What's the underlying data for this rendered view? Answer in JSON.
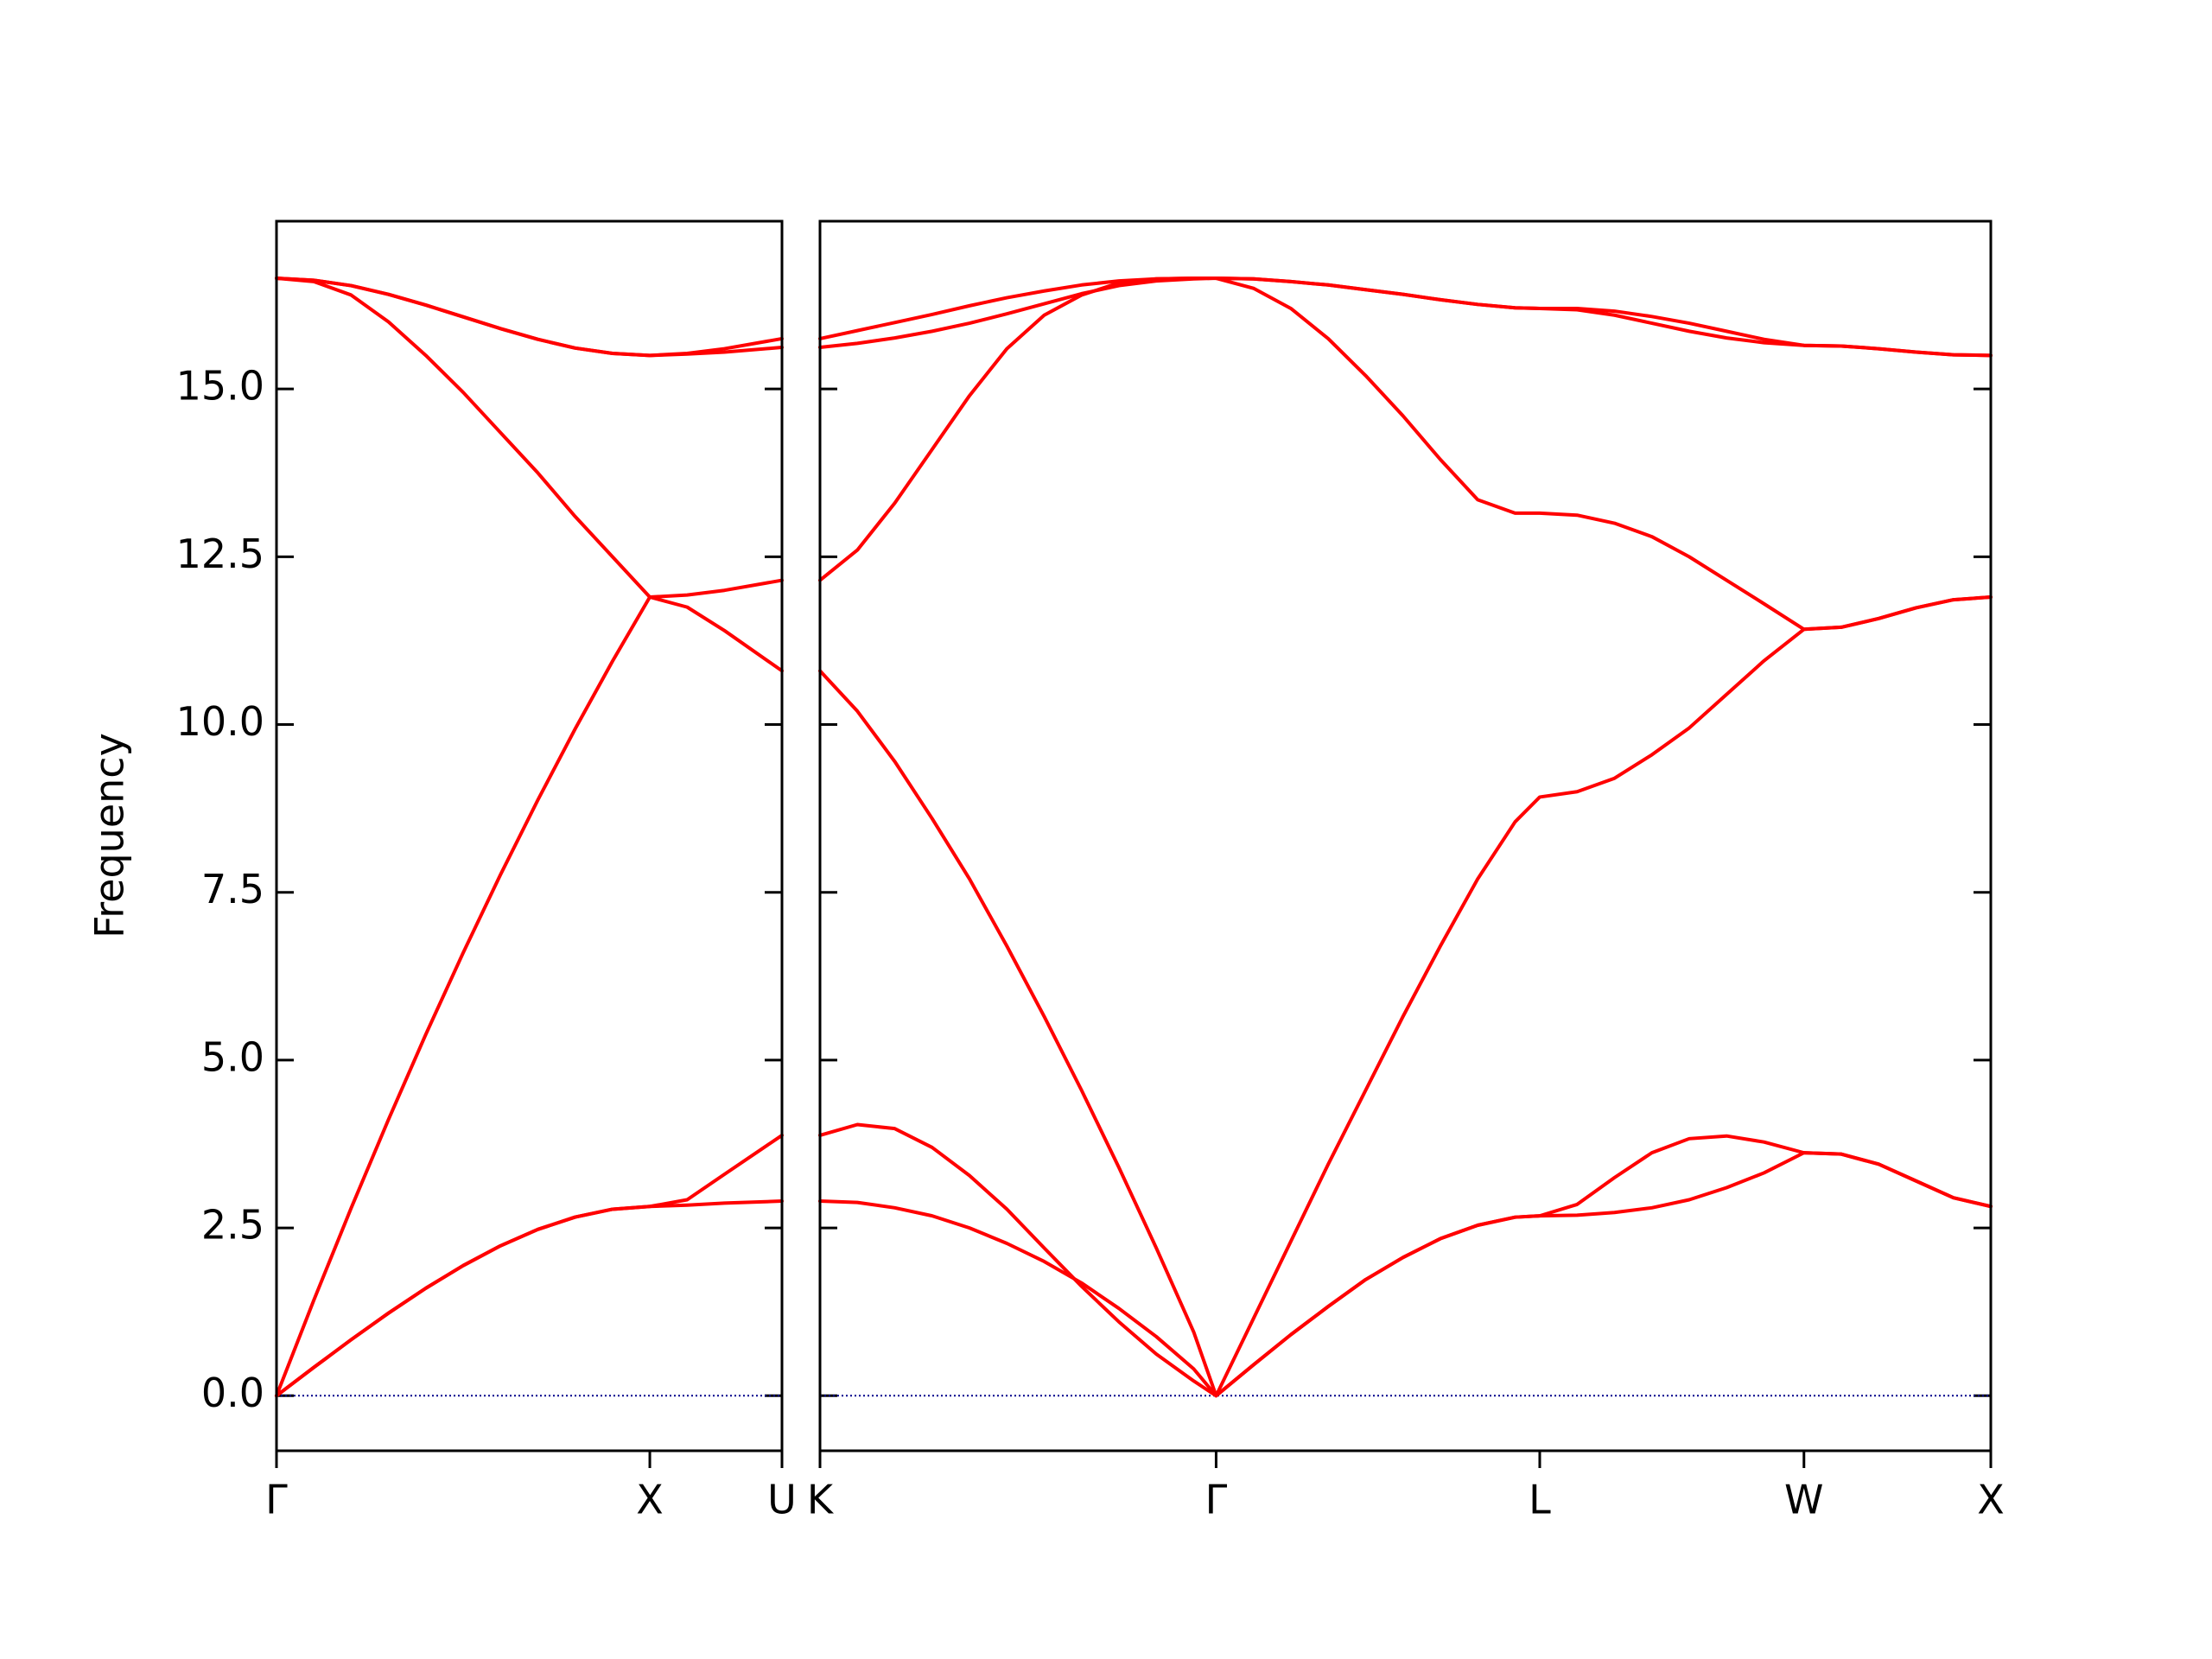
{
  "chart_data": [
    {
      "type": "line",
      "ylabel": "Frequency",
      "xlim": [
        0,
        1.354
      ],
      "ylim": [
        -0.82,
        17.5
      ],
      "xticks": [
        {
          "value": 0,
          "label": "Γ"
        },
        {
          "value": 1,
          "label": "X"
        },
        {
          "value": 1.354,
          "label": "U"
        }
      ],
      "yticks": [
        {
          "value": 0,
          "label": "0.0"
        },
        2.5,
        {
          "value": 5,
          "label": "5.0"
        },
        7.5,
        {
          "value": 10,
          "label": "10.0"
        },
        12.5,
        {
          "value": 15,
          "label": "15.0"
        }
      ],
      "hline": 0,
      "hline_color": "#00008b",
      "x": [
        0,
        0.1,
        0.2,
        0.3,
        0.4,
        0.5,
        0.6,
        0.7,
        0.8,
        0.9,
        1.0,
        1.1,
        1.2,
        1.354
      ],
      "series": [
        {
          "color": "#ff0000",
          "values": [
            0,
            0.422,
            0.835,
            1.231,
            1.602,
            1.939,
            2.234,
            2.478,
            2.662,
            2.779,
            2.82,
            2.84,
            2.87,
            2.9
          ]
        },
        {
          "color": "#ff0000",
          "values": [
            0,
            0.422,
            0.835,
            1.231,
            1.602,
            1.939,
            2.234,
            2.478,
            2.662,
            2.779,
            2.82,
            2.92,
            3.3,
            3.88
          ]
        },
        {
          "color": "#ff0000",
          "values": [
            0,
            1.424,
            2.796,
            4.116,
            5.384,
            6.6,
            7.764,
            8.876,
            9.936,
            10.944,
            11.9,
            11.75,
            11.4,
            10.8
          ]
        },
        {
          "color": "#ff0000",
          "values": [
            16.65,
            16.6,
            16.4,
            16.0,
            15.5,
            14.95,
            14.35,
            13.75,
            13.1,
            12.5,
            11.9,
            11.93,
            12.0,
            12.15
          ]
        },
        {
          "color": "#ff0000",
          "values": [
            16.65,
            16.62,
            16.54,
            16.41,
            16.25,
            16.075,
            15.9,
            15.74,
            15.61,
            15.53,
            15.5,
            15.52,
            15.55,
            15.62
          ]
        },
        {
          "color": "#ff0000",
          "values": [
            16.65,
            16.62,
            16.54,
            16.41,
            16.25,
            16.075,
            15.9,
            15.74,
            15.61,
            15.53,
            15.5,
            15.53,
            15.6,
            15.75
          ]
        }
      ]
    },
    {
      "type": "line",
      "sharey": true,
      "xlim": [
        1.354,
        4.487
      ],
      "ylim": [
        -0.82,
        17.5
      ],
      "xticks": [
        {
          "value": 1.354,
          "label": "K"
        },
        {
          "value": 2.414,
          "label": "Γ"
        },
        {
          "value": 3.28,
          "label": "L"
        },
        {
          "value": 3.987,
          "label": "W"
        },
        {
          "value": 4.487,
          "label": "X"
        }
      ],
      "hline": 0,
      "hline_color": "#00008b",
      "x": [
        1.354,
        1.454,
        1.554,
        1.654,
        1.754,
        1.854,
        1.954,
        2.054,
        2.154,
        2.254,
        2.354,
        2.414,
        2.514,
        2.614,
        2.714,
        2.814,
        2.914,
        3.014,
        3.114,
        3.214,
        3.28,
        3.38,
        3.48,
        3.58,
        3.68,
        3.78,
        3.88,
        3.987,
        4.087,
        4.187,
        4.287,
        4.387,
        4.487
      ],
      "series": [
        {
          "color": "#ff0000",
          "values": [
            2.9,
            2.88,
            2.8,
            2.68,
            2.5,
            2.27,
            2.0,
            1.68,
            1.3,
            0.88,
            0.4,
            0,
            0.46,
            0.91,
            1.33,
            1.73,
            2.06,
            2.34,
            2.54,
            2.66,
            2.68,
            2.69,
            2.73,
            2.8,
            2.92,
            3.1,
            3.32,
            3.62,
            3.6,
            3.45,
            3.2,
            2.95,
            2.82
          ]
        },
        {
          "color": "#ff0000",
          "values": [
            3.88,
            4.04,
            3.98,
            3.7,
            3.28,
            2.78,
            2.2,
            1.63,
            1.1,
            0.62,
            0.22,
            0,
            0.46,
            0.91,
            1.33,
            1.73,
            2.06,
            2.34,
            2.54,
            2.66,
            2.68,
            2.85,
            3.25,
            3.62,
            3.83,
            3.87,
            3.78,
            3.62,
            3.6,
            3.45,
            3.2,
            2.95,
            2.82
          ]
        },
        {
          "color": "#ff0000",
          "values": [
            10.8,
            10.2,
            9.45,
            8.6,
            7.7,
            6.7,
            5.65,
            4.55,
            3.4,
            2.2,
            0.95,
            0,
            1.15,
            2.3,
            3.45,
            4.55,
            5.65,
            6.7,
            7.7,
            8.55,
            8.92,
            9.0,
            9.2,
            9.55,
            9.95,
            10.45,
            10.95,
            11.42,
            11.45,
            11.58,
            11.74,
            11.86,
            11.9
          ]
        },
        {
          "color": "#ff0000",
          "values": [
            12.15,
            12.6,
            13.3,
            14.1,
            14.9,
            15.6,
            16.1,
            16.4,
            16.58,
            16.64,
            16.65,
            16.65,
            16.5,
            16.2,
            15.75,
            15.2,
            14.6,
            13.95,
            13.35,
            13.15,
            13.15,
            13.12,
            13.0,
            12.8,
            12.5,
            12.15,
            11.8,
            11.42,
            11.45,
            11.58,
            11.74,
            11.86,
            11.9
          ]
        },
        {
          "color": "#ff0000",
          "values": [
            15.62,
            15.68,
            15.76,
            15.86,
            15.98,
            16.12,
            16.27,
            16.42,
            16.54,
            16.61,
            16.64,
            16.65,
            16.64,
            16.6,
            16.55,
            16.48,
            16.41,
            16.33,
            16.26,
            16.21,
            16.2,
            16.18,
            16.1,
            15.98,
            15.86,
            15.76,
            15.69,
            15.65,
            15.64,
            15.6,
            15.55,
            15.51,
            15.5
          ]
        },
        {
          "color": "#ff0000",
          "values": [
            15.75,
            15.87,
            15.99,
            16.11,
            16.24,
            16.36,
            16.46,
            16.55,
            16.61,
            16.64,
            16.65,
            16.65,
            16.64,
            16.6,
            16.55,
            16.48,
            16.41,
            16.33,
            16.26,
            16.21,
            16.2,
            16.2,
            16.16,
            16.08,
            15.98,
            15.86,
            15.74,
            15.65,
            15.64,
            15.6,
            15.55,
            15.51,
            15.5
          ]
        }
      ]
    }
  ]
}
